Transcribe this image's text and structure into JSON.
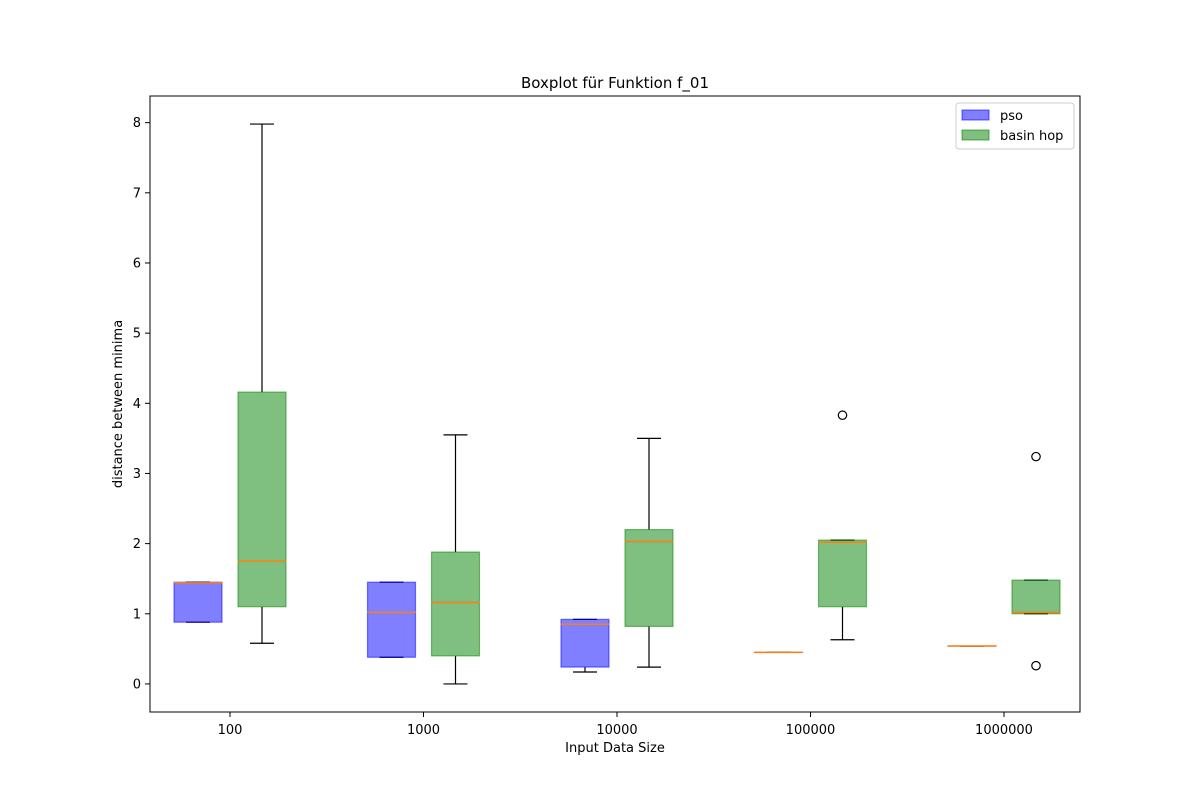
{
  "chart_data": {
    "type": "boxplot",
    "title": "Boxplot für Funktion f_01",
    "xlabel": "Input Data Size",
    "ylabel": "distance between minima",
    "ylim": [
      -0.4,
      8.38
    ],
    "yticks": [
      "0",
      "1",
      "2",
      "3",
      "4",
      "5",
      "6",
      "7",
      "8"
    ],
    "categories": [
      "100",
      "1000",
      "10000",
      "100000",
      "1000000"
    ],
    "legend_position": "top-right",
    "grid": false,
    "series": [
      {
        "name": "pso",
        "color": "#0000ff",
        "boxes": [
          {
            "whislo": 0.88,
            "q1": 0.88,
            "med": 1.44,
            "q3": 1.45,
            "whishi": 1.45,
            "fliers": []
          },
          {
            "whislo": 0.38,
            "q1": 0.38,
            "med": 1.02,
            "q3": 1.45,
            "whishi": 1.45,
            "fliers": []
          },
          {
            "whislo": 0.17,
            "q1": 0.24,
            "med": 0.85,
            "q3": 0.92,
            "whishi": 0.92,
            "fliers": []
          },
          {
            "whislo": 0.45,
            "q1": 0.45,
            "med": 0.45,
            "q3": 0.45,
            "whishi": 0.45,
            "fliers": []
          },
          {
            "whislo": 0.54,
            "q1": 0.54,
            "med": 0.54,
            "q3": 0.54,
            "whishi": 0.54,
            "fliers": []
          }
        ]
      },
      {
        "name": "basin hop",
        "color": "#008000",
        "boxes": [
          {
            "whislo": 0.58,
            "q1": 1.1,
            "med": 1.75,
            "q3": 4.16,
            "whishi": 7.98,
            "fliers": []
          },
          {
            "whislo": 0.0,
            "q1": 0.4,
            "med": 1.16,
            "q3": 1.88,
            "whishi": 3.55,
            "fliers": []
          },
          {
            "whislo": 0.24,
            "q1": 0.82,
            "med": 2.03,
            "q3": 2.2,
            "whishi": 3.5,
            "fliers": []
          },
          {
            "whislo": 0.63,
            "q1": 1.1,
            "med": 2.02,
            "q3": 2.05,
            "whishi": 2.05,
            "fliers": [
              3.83
            ]
          },
          {
            "whislo": 1.0,
            "q1": 1.0,
            "med": 1.02,
            "q3": 1.48,
            "whishi": 1.48,
            "fliers": [
              3.24,
              0.26
            ]
          }
        ]
      }
    ]
  }
}
